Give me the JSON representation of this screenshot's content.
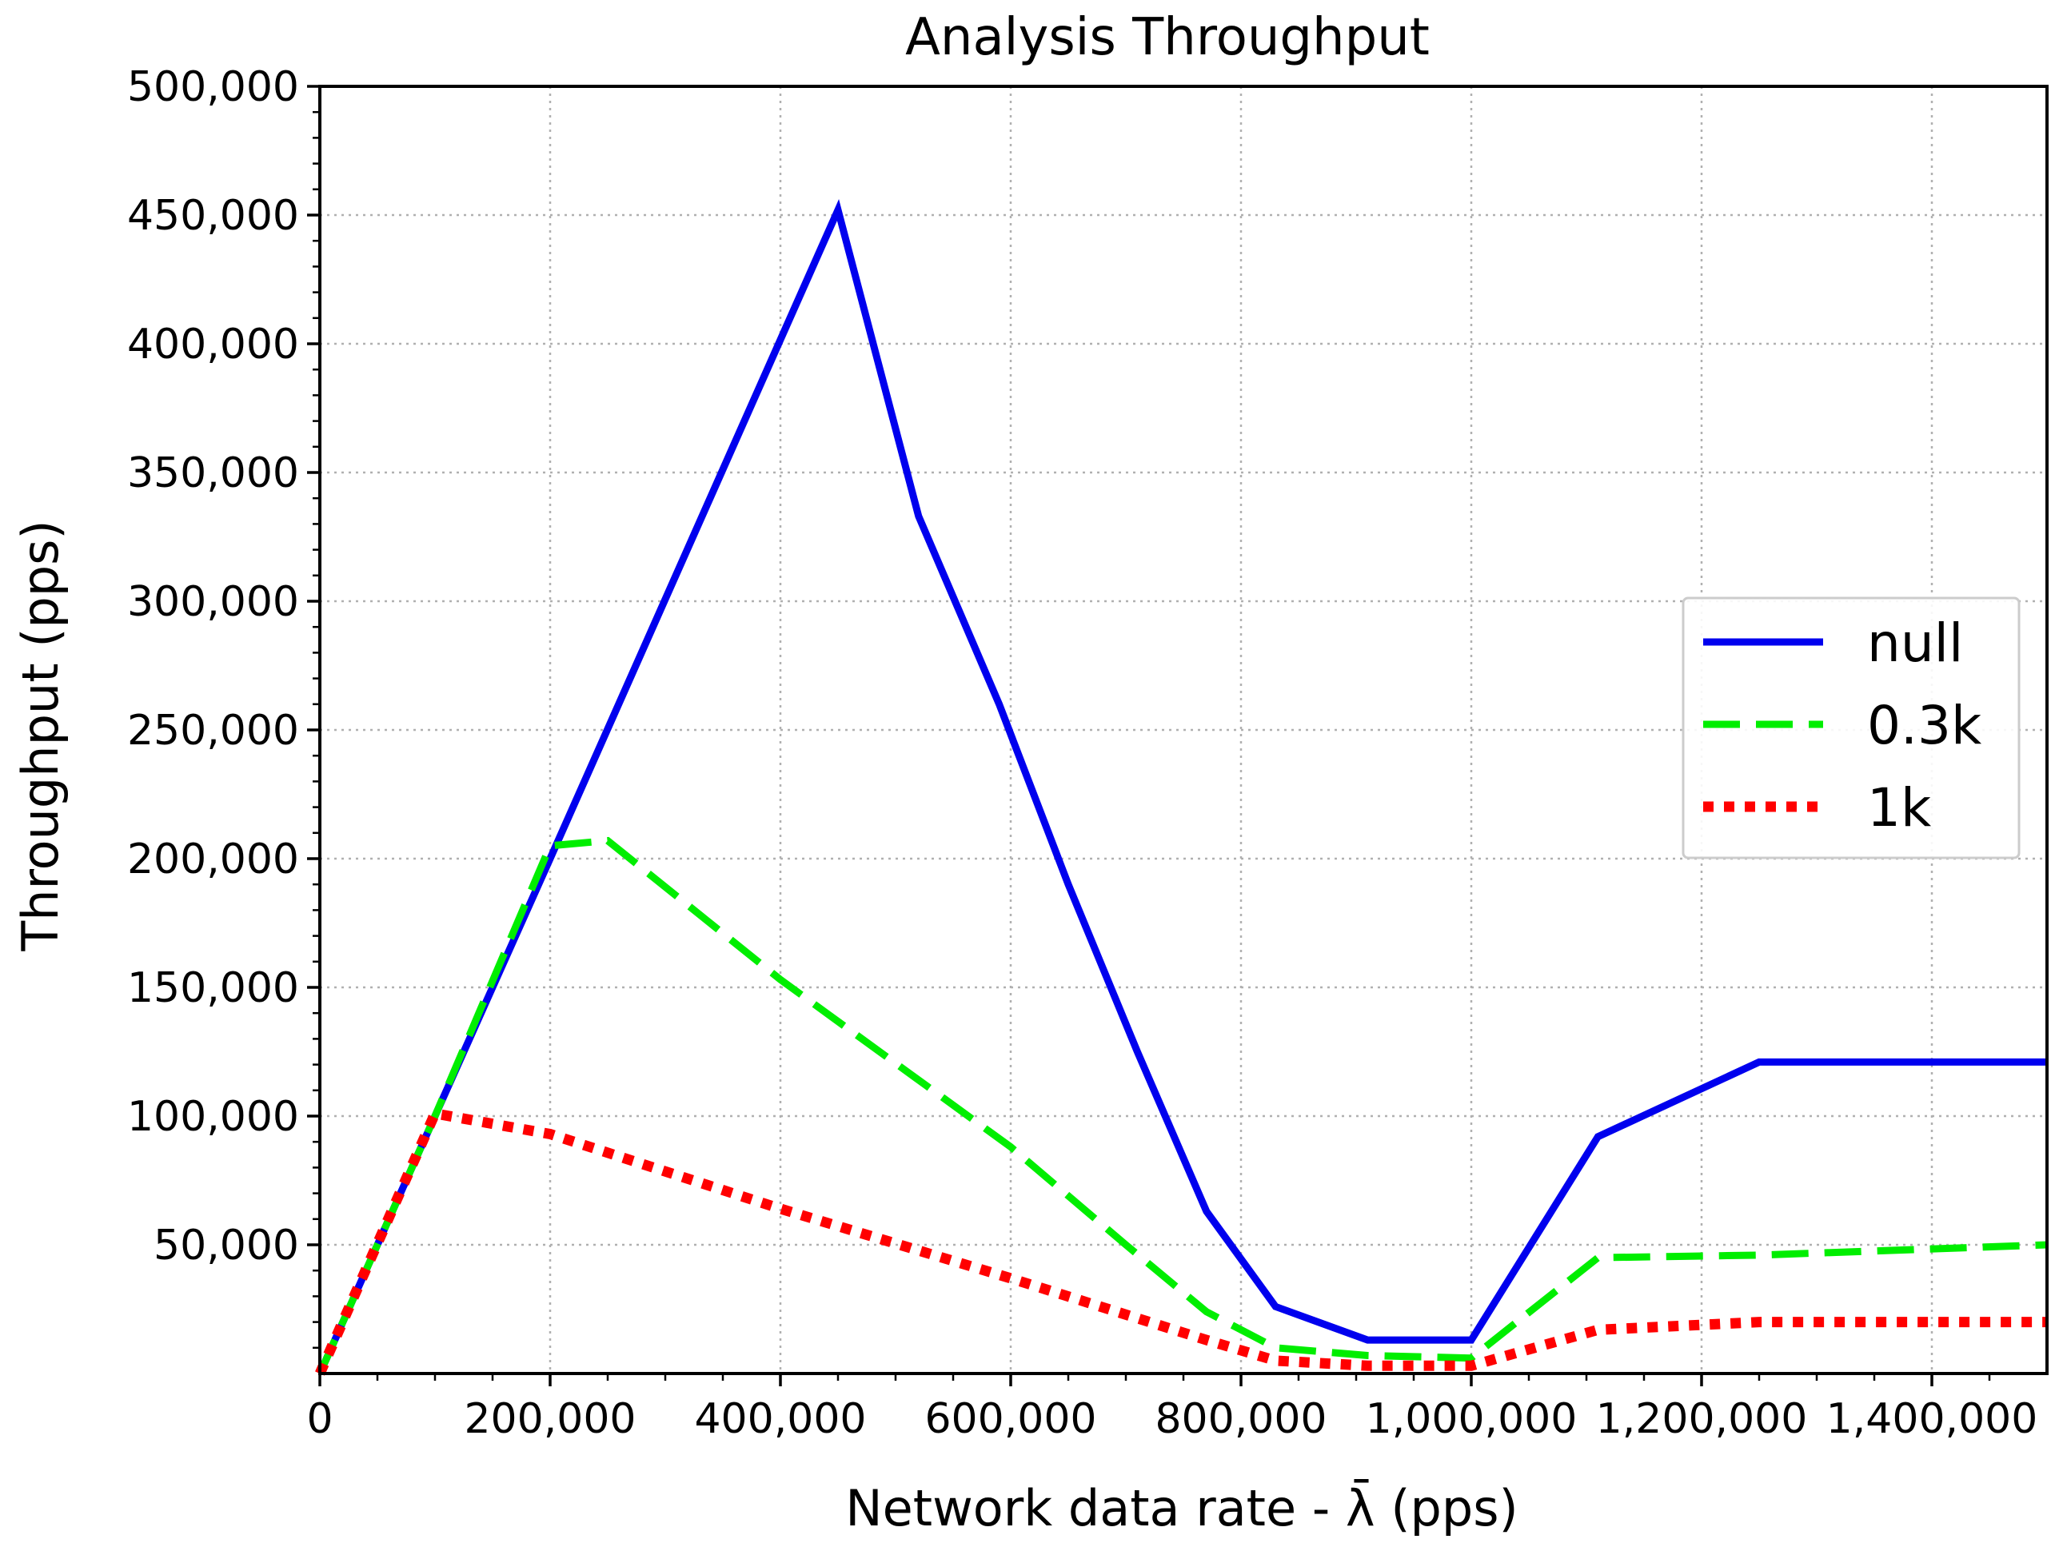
{
  "chart_data": {
    "type": "line",
    "title": "Analysis Throughput",
    "xlabel": "Network data rate - λ̄ (pps)",
    "ylabel": "Throughput (pps)",
    "xlim": [
      0,
      1500000
    ],
    "ylim": [
      0,
      500000
    ],
    "x_ticks": [
      0,
      200000,
      400000,
      600000,
      800000,
      1000000,
      1200000,
      1400000
    ],
    "x_tick_labels": [
      "0",
      "200,000",
      "400,000",
      "600,000",
      "800,000",
      "1,000,000",
      "1,200,000",
      "1,400,000"
    ],
    "y_ticks": [
      50000,
      100000,
      150000,
      200000,
      250000,
      300000,
      350000,
      400000,
      450000,
      500000
    ],
    "y_tick_labels": [
      "50,000",
      "100,000",
      "150,000",
      "200,000",
      "250,000",
      "300,000",
      "350,000",
      "400,000",
      "450,000",
      "500,000"
    ],
    "grid": true,
    "legend_position": "center-right",
    "series": [
      {
        "name": "null",
        "color": "#0000ee",
        "style": "solid",
        "x": [
          0,
          100000,
          200000,
          450000,
          520000,
          590000,
          650000,
          710000,
          770000,
          830000,
          910000,
          1000000,
          1110000,
          1250000,
          1500000
        ],
        "y": [
          0,
          100000,
          200000,
          452000,
          333000,
          260000,
          190000,
          125000,
          63000,
          26000,
          13000,
          13000,
          92000,
          121000,
          121000
        ]
      },
      {
        "name": "0.3k",
        "color": "#00ee00",
        "style": "dashed",
        "x": [
          0,
          100000,
          200000,
          250000,
          400000,
          600000,
          700000,
          770000,
          830000,
          910000,
          1000000,
          1110000,
          1250000,
          1500000
        ],
        "y": [
          0,
          100000,
          205000,
          207000,
          153000,
          88000,
          50000,
          24000,
          10000,
          7000,
          6000,
          45000,
          46000,
          50000
        ]
      },
      {
        "name": "1k",
        "color": "#ff0000",
        "style": "dotted",
        "x": [
          0,
          100000,
          200000,
          400000,
          600000,
          770000,
          830000,
          910000,
          1000000,
          1110000,
          1250000,
          1500000
        ],
        "y": [
          0,
          101000,
          93000,
          64000,
          37000,
          13000,
          5000,
          3000,
          3000,
          17000,
          20000,
          20000
        ]
      }
    ]
  }
}
